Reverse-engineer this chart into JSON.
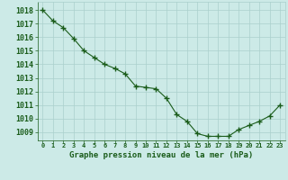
{
  "x": [
    0,
    1,
    2,
    3,
    4,
    5,
    6,
    7,
    8,
    9,
    10,
    11,
    12,
    13,
    14,
    15,
    16,
    17,
    18,
    19,
    20,
    21,
    22,
    23
  ],
  "y": [
    1018.0,
    1017.2,
    1016.7,
    1015.9,
    1015.0,
    1014.5,
    1014.0,
    1013.7,
    1013.3,
    1012.4,
    1012.3,
    1012.2,
    1011.5,
    1010.3,
    1009.8,
    1008.9,
    1008.7,
    1008.7,
    1008.7,
    1009.2,
    1009.5,
    1009.8,
    1010.2,
    1011.0
  ],
  "line_color": "#1a5c1a",
  "marker": "+",
  "marker_size": 4,
  "marker_linewidth": 1.0,
  "linewidth": 0.8,
  "bg_color": "#cceae7",
  "grid_color": "#aad0cc",
  "xlabel": "Graphe pression niveau de la mer (hPa)",
  "xlabel_color": "#1a5c1a",
  "xlabel_fontsize": 6.5,
  "ylabel_ticks": [
    1009,
    1010,
    1011,
    1012,
    1013,
    1014,
    1015,
    1016,
    1017,
    1018
  ],
  "ylim": [
    1008.4,
    1018.6
  ],
  "xlim": [
    -0.5,
    23.5
  ],
  "tick_color": "#1a5c1a",
  "tick_fontsize": 6.0,
  "xtick_fontsize": 5.0
}
